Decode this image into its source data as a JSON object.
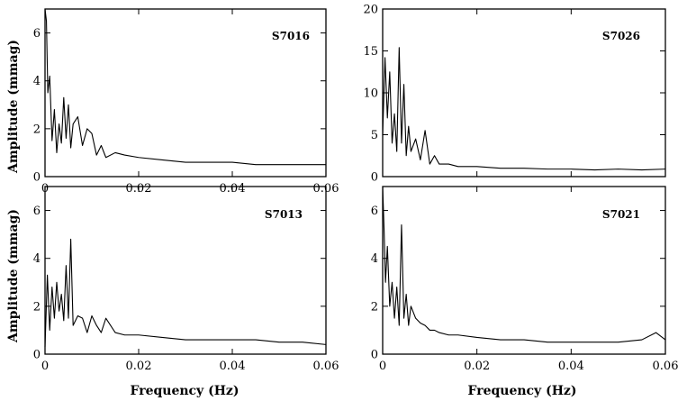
{
  "figure": {
    "xlabel": "Frequency (Hz)",
    "ylabel": "Amplitude (mmag)"
  },
  "chart_data": [
    {
      "type": "line",
      "label": "S7016",
      "xlim": [
        0,
        0.06
      ],
      "ylim": [
        0,
        7
      ],
      "xticks": [
        0,
        0.02,
        0.04,
        0.06
      ],
      "xtick_labels": [
        "0",
        "0.02",
        "0.04",
        "0.06"
      ],
      "yticks": [
        0,
        2,
        4,
        6
      ],
      "ytick_labels": [
        "0",
        "2",
        "4",
        "6"
      ],
      "xlabel": "",
      "ylabel": "Amplitude (mmag)",
      "series": [
        {
          "x": [
            0,
            0.0003,
            0.0006,
            0.001,
            0.0015,
            0.002,
            0.0025,
            0.003,
            0.0035,
            0.004,
            0.0045,
            0.005,
            0.0055,
            0.006,
            0.007,
            0.008,
            0.009,
            0.01,
            0.011,
            0.012,
            0.013,
            0.015,
            0.017,
            0.02,
            0.025,
            0.03,
            0.035,
            0.04,
            0.045,
            0.05,
            0.055,
            0.06
          ],
          "y": [
            7,
            6.5,
            3.5,
            4.2,
            1.5,
            2.8,
            1.0,
            2.2,
            1.4,
            3.3,
            1.6,
            3.0,
            1.2,
            2.2,
            2.5,
            1.3,
            2.0,
            1.8,
            0.9,
            1.3,
            0.8,
            1.0,
            0.9,
            0.8,
            0.7,
            0.6,
            0.6,
            0.6,
            0.5,
            0.5,
            0.5,
            0.5
          ]
        }
      ]
    },
    {
      "type": "line",
      "label": "S7026",
      "xlim": [
        0,
        0.06
      ],
      "ylim": [
        0,
        20
      ],
      "xticks": [
        0,
        0.02,
        0.04,
        0.06
      ],
      "xtick_labels": [
        "",
        "",
        "",
        ""
      ],
      "yticks": [
        0,
        5,
        10,
        15,
        20
      ],
      "ytick_labels": [
        "0",
        "5",
        "10",
        "15",
        "20"
      ],
      "xlabel": "",
      "ylabel": "",
      "series": [
        {
          "x": [
            0,
            0.0005,
            0.001,
            0.0015,
            0.002,
            0.0025,
            0.003,
            0.0035,
            0.004,
            0.0045,
            0.005,
            0.0055,
            0.006,
            0.007,
            0.008,
            0.009,
            0.01,
            0.011,
            0.012,
            0.014,
            0.016,
            0.02,
            0.025,
            0.03,
            0.035,
            0.04,
            0.045,
            0.05,
            0.055,
            0.06
          ],
          "y": [
            5,
            14.2,
            7,
            12.5,
            4,
            7.5,
            3,
            15.4,
            4,
            11,
            2.5,
            6,
            3,
            4.5,
            2,
            5.5,
            1.5,
            2.5,
            1.5,
            1.5,
            1.2,
            1.2,
            1.0,
            1.0,
            0.9,
            0.9,
            0.8,
            0.9,
            0.8,
            0.9
          ]
        }
      ]
    },
    {
      "type": "line",
      "label": "S7013",
      "xlim": [
        0,
        0.06
      ],
      "ylim": [
        0,
        7
      ],
      "xticks": [
        0,
        0.02,
        0.04,
        0.06
      ],
      "xtick_labels": [
        "0",
        "0.02",
        "0.04",
        "0.06"
      ],
      "yticks": [
        0,
        2,
        4,
        6
      ],
      "ytick_labels": [
        "0",
        "2",
        "4",
        "6"
      ],
      "xlabel": "Frequency (Hz)",
      "ylabel": "Amplitude (mmag)",
      "series": [
        {
          "x": [
            0,
            0.0005,
            0.001,
            0.0015,
            0.002,
            0.0025,
            0.003,
            0.0035,
            0.004,
            0.0045,
            0.005,
            0.0055,
            0.006,
            0.007,
            0.008,
            0.009,
            0.01,
            0.011,
            0.012,
            0.013,
            0.015,
            0.017,
            0.02,
            0.025,
            0.03,
            0.035,
            0.04,
            0.045,
            0.05,
            0.055,
            0.06
          ],
          "y": [
            0.3,
            3.3,
            1.0,
            2.8,
            1.5,
            3.0,
            1.8,
            2.5,
            1.4,
            3.7,
            1.5,
            4.8,
            1.2,
            1.6,
            1.5,
            0.9,
            1.6,
            1.2,
            0.9,
            1.5,
            0.9,
            0.8,
            0.8,
            0.7,
            0.6,
            0.6,
            0.6,
            0.6,
            0.5,
            0.5,
            0.4
          ]
        }
      ]
    },
    {
      "type": "line",
      "label": "S7021",
      "xlim": [
        0,
        0.06
      ],
      "ylim": [
        0,
        7
      ],
      "xticks": [
        0,
        0.02,
        0.04,
        0.06
      ],
      "xtick_labels": [
        "0",
        "0.02",
        "0.04",
        "0.06"
      ],
      "yticks": [
        0,
        2,
        4,
        6
      ],
      "ytick_labels": [
        "0",
        "2",
        "4",
        "6"
      ],
      "xlabel": "Frequency (Hz)",
      "ylabel": "",
      "series": [
        {
          "x": [
            0,
            0.0003,
            0.0006,
            0.001,
            0.0015,
            0.002,
            0.0025,
            0.003,
            0.0035,
            0.004,
            0.0045,
            0.005,
            0.0055,
            0.006,
            0.007,
            0.008,
            0.009,
            0.01,
            0.011,
            0.012,
            0.014,
            0.016,
            0.02,
            0.025,
            0.03,
            0.035,
            0.04,
            0.045,
            0.05,
            0.055,
            0.058,
            0.06
          ],
          "y": [
            7,
            5.2,
            3.0,
            4.5,
            2.0,
            3.0,
            1.5,
            2.8,
            1.2,
            5.4,
            1.5,
            2.5,
            1.2,
            2.0,
            1.5,
            1.3,
            1.2,
            1.0,
            1.0,
            0.9,
            0.8,
            0.8,
            0.7,
            0.6,
            0.6,
            0.5,
            0.5,
            0.5,
            0.5,
            0.6,
            0.9,
            0.6
          ]
        }
      ]
    }
  ]
}
